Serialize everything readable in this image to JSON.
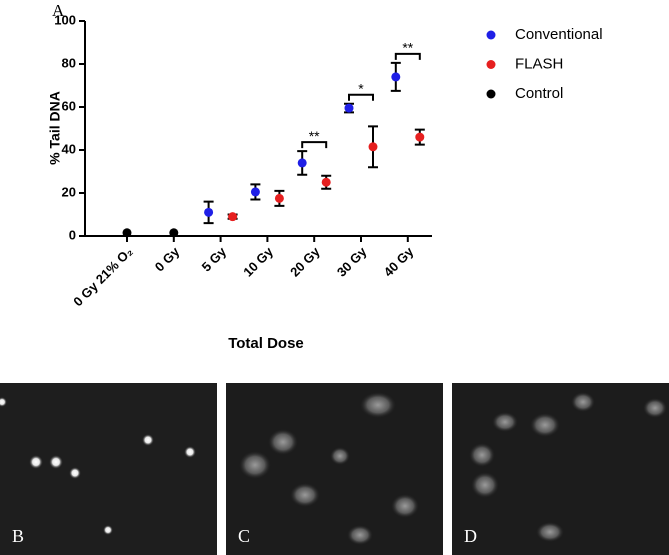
{
  "chart_data": {
    "type": "scatter",
    "y_label": "% Tail DNA",
    "x_label": "Total Dose",
    "categories": [
      "0 Gy 21% O₂",
      "0 Gy",
      "5 Gy",
      "10 Gy",
      "20 Gy",
      "30 Gy",
      "40 Gy"
    ],
    "series": [
      {
        "name": "Conventional",
        "color": "#1f1fe6",
        "values": [
          null,
          null,
          11,
          20.5,
          34,
          59.5,
          74
        ],
        "errors": [
          null,
          null,
          5,
          3.5,
          5.5,
          2,
          6.5
        ]
      },
      {
        "name": "FLASH",
        "color": "#e61f1f",
        "values": [
          null,
          null,
          9,
          17.5,
          25,
          41.5,
          46
        ],
        "errors": [
          null,
          null,
          1,
          3.5,
          3,
          9.5,
          3.5
        ]
      },
      {
        "name": "Control",
        "color": "#000000",
        "values": [
          1.5,
          1.5,
          null,
          null,
          null,
          null,
          null
        ],
        "errors": [
          null,
          null,
          null,
          null,
          null,
          null,
          null
        ]
      }
    ],
    "ylim": [
      0,
      100
    ],
    "yticks": [
      0,
      20,
      40,
      60,
      80,
      100
    ],
    "significance": [
      {
        "category": "20 Gy",
        "label": "**"
      },
      {
        "category": "30 Gy",
        "label": "*"
      },
      {
        "category": "40 Gy",
        "label": "**"
      }
    ],
    "legend": "top-right"
  },
  "figure_labels": [
    "A",
    "B",
    "C",
    "D"
  ]
}
